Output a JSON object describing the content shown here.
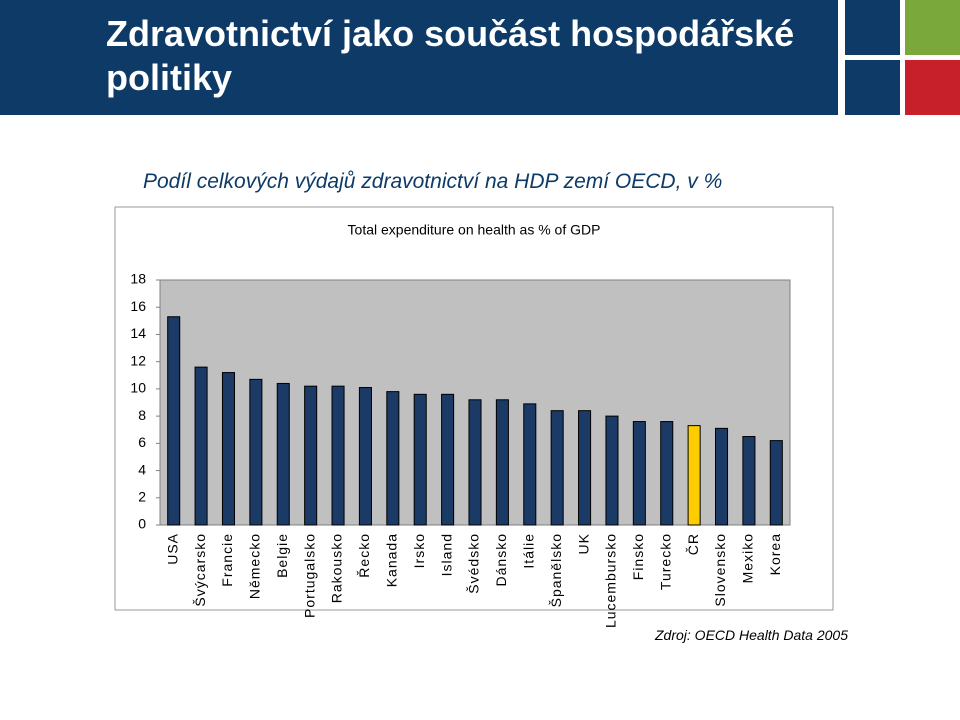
{
  "slide": {
    "title": "Zdravotnictví jako součást hospodářské politiky",
    "subtitle": "Podíl celkových výdajů zdravotnictví na HDP zemí OECD, v %",
    "source": "Zdroj: OECD Health Data 2005"
  },
  "chart_data": {
    "type": "bar",
    "title": "Total expenditure on health as % of GDP",
    "categories": [
      "USA",
      "Švýcarsko",
      "Francie",
      "Německo",
      "Belgie",
      "Portugalsko",
      "Rakousko",
      "Řecko",
      "Kanada",
      "Irsko",
      "Island",
      "Švédsko",
      "Dánsko",
      "Itálie",
      "Španělsko",
      "UK",
      "Lucembursko",
      "Finsko",
      "Turecko",
      "ČR",
      "Slovensko",
      "Mexiko",
      "Korea"
    ],
    "values": [
      15.3,
      11.6,
      11.2,
      10.7,
      10.4,
      10.2,
      10.2,
      10.1,
      9.8,
      9.6,
      9.6,
      9.2,
      9.2,
      8.9,
      8.4,
      8.4,
      8.0,
      7.6,
      7.6,
      7.3,
      7.1,
      6.5,
      6.2
    ],
    "colors": [
      "#1b3a66",
      "#1b3a66",
      "#1b3a66",
      "#1b3a66",
      "#1b3a66",
      "#1b3a66",
      "#1b3a66",
      "#1b3a66",
      "#1b3a66",
      "#1b3a66",
      "#1b3a66",
      "#1b3a66",
      "#1b3a66",
      "#1b3a66",
      "#1b3a66",
      "#1b3a66",
      "#1b3a66",
      "#1b3a66",
      "#1b3a66",
      "#ffcc00",
      "#1b3a66",
      "#1b3a66",
      "#1b3a66"
    ],
    "ylim": [
      0,
      18
    ],
    "yticks": [
      0,
      2,
      4,
      6,
      8,
      10,
      12,
      14,
      16,
      18
    ],
    "grid": false
  }
}
